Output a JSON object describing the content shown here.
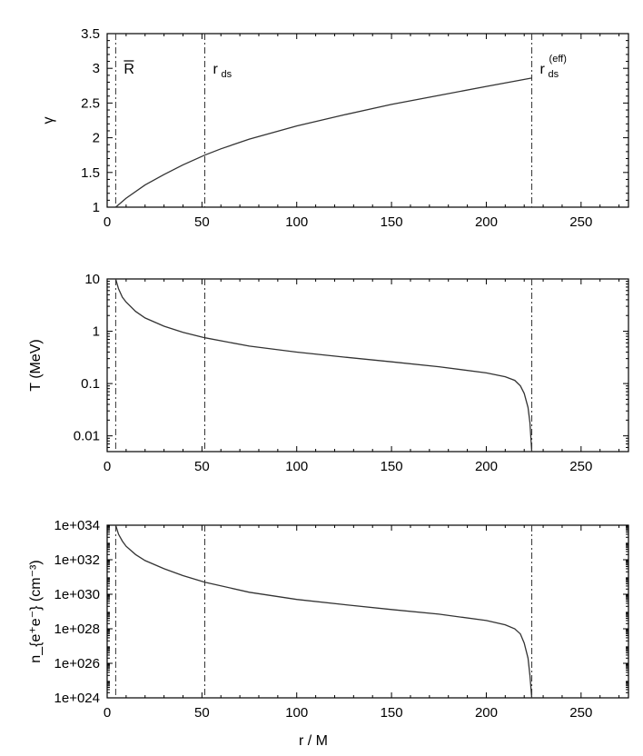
{
  "chart_data": [
    {
      "type": "line",
      "ylabel": "γ",
      "xlim": [
        0,
        275
      ],
      "ylim": [
        1,
        3.5
      ],
      "xticks": [
        "0",
        "50",
        "100",
        "150",
        "200",
        "250"
      ],
      "yticks": [
        "1",
        "1.5",
        "2",
        "2.5",
        "3",
        "3.5"
      ],
      "vlines": [
        {
          "x": 4.5,
          "label": "R",
          "overline": true
        },
        {
          "x": 51.5,
          "label": "r",
          "sub": "ds"
        },
        {
          "x": 224,
          "label": "r",
          "sub": "ds",
          "sup": "(eff)"
        }
      ],
      "series": [
        {
          "x": [
            4.5,
            10,
            20,
            30,
            40,
            51.5,
            60,
            75,
            100,
            125,
            150,
            175,
            200,
            224
          ],
          "y": [
            1.0,
            1.13,
            1.32,
            1.47,
            1.61,
            1.75,
            1.84,
            1.98,
            2.17,
            2.33,
            2.48,
            2.61,
            2.74,
            2.86
          ]
        }
      ]
    },
    {
      "type": "line",
      "ylabel": "T (MeV)",
      "yscale": "log",
      "xlim": [
        0,
        275
      ],
      "ylim": [
        0.005,
        10
      ],
      "xticks": [
        "0",
        "50",
        "100",
        "150",
        "200",
        "250"
      ],
      "yticks": [
        "10",
        "1",
        "0.1",
        "0.01"
      ],
      "ytick_values": [
        10,
        1,
        0.1,
        0.01
      ],
      "vlines": [
        {
          "x": 4.5
        },
        {
          "x": 51.5
        },
        {
          "x": 224
        }
      ],
      "series": [
        {
          "x": [
            4.5,
            6,
            8,
            10,
            15,
            20,
            30,
            40,
            51.5,
            75,
            100,
            125,
            150,
            175,
            200,
            210,
            215,
            218,
            220,
            222,
            223,
            224
          ],
          "y": [
            10,
            6.5,
            4.5,
            3.6,
            2.4,
            1.8,
            1.25,
            0.95,
            0.75,
            0.52,
            0.4,
            0.32,
            0.26,
            0.21,
            0.16,
            0.135,
            0.115,
            0.09,
            0.065,
            0.035,
            0.018,
            0.005
          ]
        }
      ]
    },
    {
      "type": "line",
      "xlabel": "r / M",
      "ylabel": "n_{e⁺e⁻} (cm⁻³)",
      "yscale": "log",
      "xlim": [
        0,
        275
      ],
      "ylim": [
        1e+24,
        1e+34
      ],
      "xticks": [
        "0",
        "50",
        "100",
        "150",
        "200",
        "250"
      ],
      "yticks": [
        "1e+034",
        "1e+032",
        "1e+030",
        "1e+028",
        "1e+026",
        "1e+024"
      ],
      "ytick_values": [
        1e+34,
        1e+32,
        1e+30,
        1e+28,
        1e+26,
        1e+24
      ],
      "vlines": [
        {
          "x": 4.5
        },
        {
          "x": 51.5
        },
        {
          "x": 224
        }
      ],
      "series": [
        {
          "x": [
            4.5,
            6,
            8,
            10,
            15,
            20,
            30,
            40,
            51.5,
            75,
            100,
            125,
            150,
            175,
            200,
            210,
            215,
            218,
            220,
            222,
            223,
            224
          ],
          "y": [
            1e+34,
            3e+33,
            1.2e+33,
            6e+32,
            2e+32,
            9e+31,
            3e+31,
            1.2e+31,
            5e+30,
            1.3e+30,
            5e+29,
            2.5e+29,
            1.3e+29,
            7e+28,
            3e+28,
            1.7e+28,
            1e+28,
            5e+27,
            1.5e+27,
            2e+26,
            2e+25,
            1e+24
          ]
        }
      ]
    }
  ]
}
